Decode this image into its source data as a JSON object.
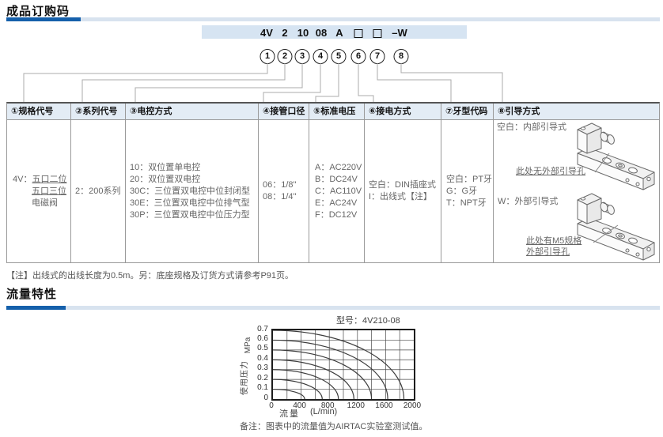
{
  "ordering": {
    "title": "成品订购码",
    "code": {
      "segments": [
        "4V",
        "2",
        "10",
        "08",
        "A"
      ],
      "suffix": "–W",
      "circles": [
        "1",
        "2",
        "3",
        "4",
        "5",
        "6",
        "7",
        "8"
      ]
    },
    "table": {
      "col1": {
        "header": "①规格代号",
        "prefix": "4V：",
        "underlined_lines": [
          "五口二位",
          "五口三位"
        ],
        "plain_line": "电磁阀"
      },
      "col2": {
        "header": "②系列代号",
        "lines": [
          "2：200系列"
        ]
      },
      "col3": {
        "header": "③电控方式",
        "lines": [
          "10：双位置单电控",
          "20：双位置双电控",
          "30C：三位置双电控中位封闭型",
          "30E：三位置双电控中位排气型",
          "30P：三位置双电控中位压力型"
        ]
      },
      "col4": {
        "header": "④接管口径",
        "lines": [
          "06：1/8\"",
          "08：1/4\""
        ]
      },
      "col5": {
        "header": "⑤标准电压",
        "lines": [
          "A：AC220V",
          "B：DC24V",
          "C：AC110V",
          "E：AC24V",
          "F：DC12V"
        ]
      },
      "col6": {
        "header": "⑥接电方式",
        "lines": [
          "空白：DIN插座式",
          "I：出线式【注】"
        ]
      },
      "col7": {
        "header": "⑦牙型代码",
        "lines": [
          "空白：PT牙",
          "G：G牙",
          "T：NPT牙"
        ]
      },
      "col8": {
        "header": "⑧引导方式",
        "internal": {
          "label": "空白：内部引导式",
          "callout": "此处无外部引导孔"
        },
        "external": {
          "label": "W：外部引导式",
          "callout_line1": "此处有M5规格",
          "callout_line2": "外部引导孔"
        }
      }
    },
    "note": "【注】出线式的出线长度为0.5m。另：底座规格及订货方式请参考P91页。"
  },
  "flow": {
    "title": "流量特性"
  },
  "chart_data": {
    "type": "line",
    "title": "型号：4V210-08",
    "xlabel": "流量",
    "x_unit": "(L/min)",
    "ylabel": "使用压力",
    "y_unit": "MPa",
    "xlim": [
      0,
      2000
    ],
    "ylim": [
      0,
      0.7
    ],
    "x_grid_step": 200,
    "y_grid_step": 0.1,
    "x_tick_labels": [
      "0",
      "400",
      "800",
      "1200",
      "1600",
      "2000"
    ],
    "y_tick_labels": [
      "0.7",
      "0.6",
      "0.5",
      "0.4",
      "0.3",
      "0.2",
      "0.1",
      "0"
    ],
    "grid": true,
    "legend_position": "none",
    "curves": [
      {
        "inlet_pressure_mpa": 0.1,
        "max_flow_lmin": 450
      },
      {
        "inlet_pressure_mpa": 0.2,
        "max_flow_lmin": 700
      },
      {
        "inlet_pressure_mpa": 0.3,
        "max_flow_lmin": 930
      },
      {
        "inlet_pressure_mpa": 0.4,
        "max_flow_lmin": 1150
      },
      {
        "inlet_pressure_mpa": 0.5,
        "max_flow_lmin": 1400
      },
      {
        "inlet_pressure_mpa": 0.6,
        "max_flow_lmin": 1630
      },
      {
        "inlet_pressure_mpa": 0.7,
        "max_flow_lmin": 1860
      }
    ],
    "remark": "备注：图表中的流量值为AIRTAC实验室测试值。"
  }
}
